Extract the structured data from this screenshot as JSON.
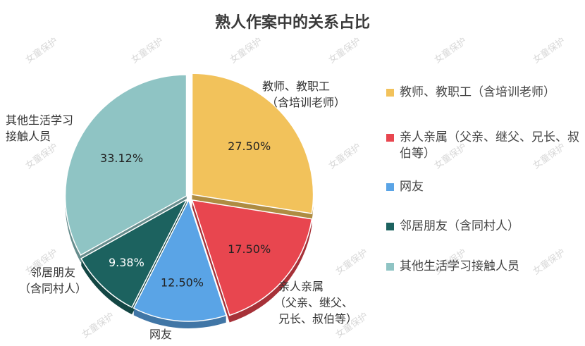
{
  "chart_data": {
    "type": "pie",
    "title": "熟人作案中的关系占比",
    "categories": [
      "教师、教职工（含培训老师）",
      "亲人亲属（父亲、继父、兄长、叔伯等）",
      "网友",
      "邻居朋友（含同村人）",
      "其他生活学习接触人员"
    ],
    "values": [
      27.5,
      17.5,
      12.5,
      9.38,
      33.12
    ],
    "value_labels": [
      "27.50%",
      "17.50%",
      "12.50%",
      "9.38%",
      "33.12%"
    ],
    "outer_labels": [
      [
        "教师、教职工",
        "（含培训老师）"
      ],
      [
        "亲人亲属",
        "（父亲、继父、",
        "兄长、叔伯等）"
      ],
      [
        "网友"
      ],
      [
        "邻居朋友",
        "（含同村人）"
      ],
      [
        "其他生活学习",
        "接触人员"
      ]
    ],
    "colors": [
      "#f2c25b",
      "#e8464f",
      "#5aa4e6",
      "#1c625f",
      "#8fc4c4"
    ],
    "legend": {
      "placement": "right",
      "labels": [
        "教师、教职工（含培训老师）",
        "亲人亲属（父亲、继父、兄长、叔伯等）",
        "网友",
        "邻居朋友（含同村人）",
        "其他生活学习接触人员"
      ]
    },
    "exploded": true,
    "style": "3d-shadow"
  },
  "watermark": "女童保护"
}
